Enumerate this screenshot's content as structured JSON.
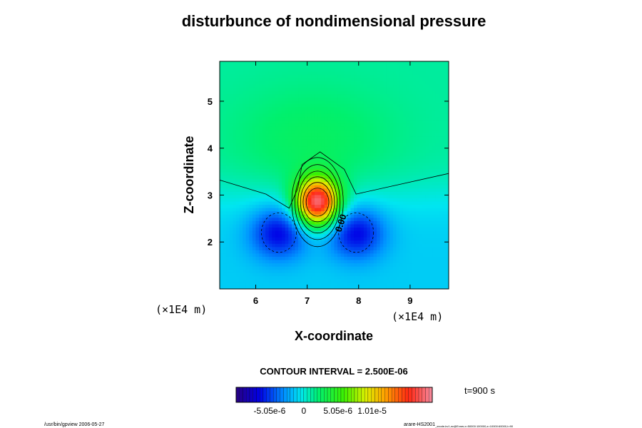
{
  "chart_data": {
    "type": "heatmap",
    "title": "disturbunce of nondimensional pressure",
    "xlabel": "X-coordinate",
    "ylabel": "Z-coordinate",
    "x_unit_label": "(×1E4 m)",
    "y_unit_label": "(×1E4 m)",
    "xlim": [
      5.3,
      9.75
    ],
    "ylim": [
      1.0,
      5.85
    ],
    "xticks": [
      6,
      7,
      8,
      9
    ],
    "yticks": [
      2,
      3,
      4,
      5
    ],
    "contour_interval_label": "CONTOUR INTERVAL = 2.500E-06",
    "contour_label": "0.00",
    "time_label": "t=900 s",
    "colorbar": {
      "range": [
        -1e-05,
        1.9e-05
      ],
      "tick_values": [
        -5.05e-06,
        0,
        5.05e-06,
        1.01e-05
      ],
      "tick_labels": [
        "-5.05e-6",
        "0",
        "5.05e-6",
        "1.01e-5"
      ]
    },
    "field": {
      "positive_core": {
        "x": 7.2,
        "z": 2.85,
        "peak": 1.8e-05
      },
      "negative_lobes": [
        {
          "x": 6.45,
          "z": 2.2,
          "min": -5.5e-06
        },
        {
          "x": 7.95,
          "z": 2.2,
          "min": -5.5e-06
        }
      ]
    }
  },
  "footer": {
    "left": "/usr/bin/gpview 2006-05-27",
    "right": "arare-HS2001",
    "right_sub": "_xnode-kv1,nc@Exner,x=50000:100000,z=10000:60000,t=90"
  }
}
